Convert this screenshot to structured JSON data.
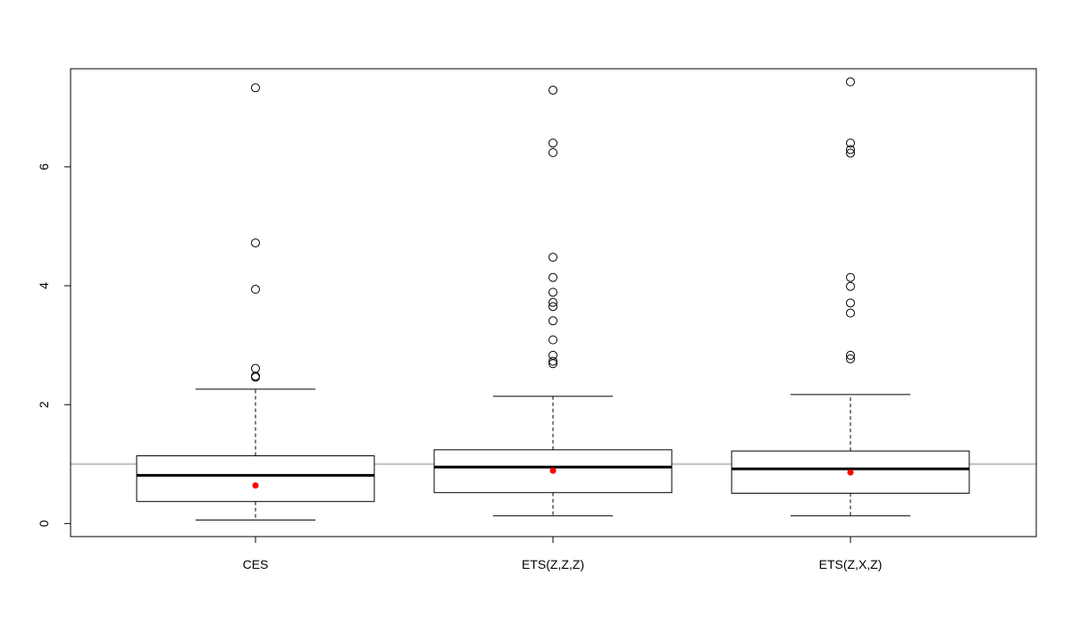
{
  "chart_data": {
    "type": "boxplot",
    "title": "",
    "xlabel": "",
    "ylabel": "",
    "categories": [
      "CES",
      "ETS(Z,Z,Z)",
      "ETS(Z,X,Z)"
    ],
    "y_ticks": [
      0,
      2,
      4,
      6
    ],
    "ylim": [
      -0.22,
      7.65
    ],
    "reference_line": {
      "y": 1.0,
      "color": "#bebebe"
    },
    "mean_color": "#ff0000",
    "grid": false,
    "series": [
      {
        "category": "CES",
        "whisker_low": 0.06,
        "q1": 0.37,
        "median": 0.81,
        "q3": 1.14,
        "whisker_high": 2.26,
        "mean": 0.64,
        "outliers": [
          7.33,
          4.72,
          3.94,
          2.61,
          2.48,
          2.46
        ]
      },
      {
        "category": "ETS(Z,Z,Z)",
        "whisker_low": 0.13,
        "q1": 0.52,
        "median": 0.95,
        "q3": 1.24,
        "whisker_high": 2.14,
        "mean": 0.89,
        "outliers": [
          7.29,
          6.4,
          6.24,
          4.48,
          4.14,
          3.89,
          3.72,
          3.65,
          3.41,
          3.09,
          2.83,
          2.73,
          2.69
        ]
      },
      {
        "category": "ETS(Z,X,Z)",
        "whisker_low": 0.13,
        "q1": 0.51,
        "median": 0.92,
        "q3": 1.22,
        "whisker_high": 2.17,
        "mean": 0.86,
        "outliers": [
          7.43,
          6.4,
          6.29,
          6.23,
          4.14,
          3.99,
          3.71,
          3.54,
          2.83,
          2.77
        ]
      }
    ]
  }
}
